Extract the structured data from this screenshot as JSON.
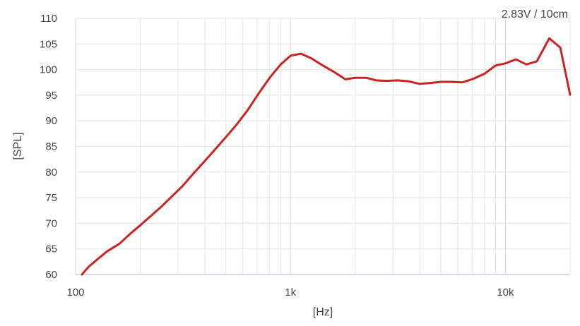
{
  "chart_data": {
    "type": "line",
    "title": "",
    "annotation": "2.83V / 10cm",
    "xlabel": "[Hz]",
    "ylabel": "[SPL]",
    "xscale": "log",
    "xlim": [
      100,
      20000
    ],
    "ylim": [
      60,
      110
    ],
    "x_ticks": [
      100,
      1000,
      10000
    ],
    "x_tick_labels": [
      "100",
      "1k",
      "10k"
    ],
    "y_ticks": [
      60,
      65,
      70,
      75,
      80,
      85,
      90,
      95,
      100,
      105,
      110
    ],
    "y_tick_labels": [
      "60",
      "65",
      "70",
      "75",
      "80",
      "85",
      "90",
      "95",
      "100",
      "105",
      "110"
    ],
    "grid": true,
    "colors": {
      "line": "#cc2222",
      "grid": "#e3e3e3",
      "baseline": "#c8cdf0",
      "text": "#444444"
    },
    "series": [
      {
        "x": [
          107,
          115,
          125,
          140,
          160,
          180,
          200,
          225,
          250,
          280,
          315,
          355,
          400,
          450,
          500,
          560,
          630,
          710,
          800,
          900,
          1000,
          1120,
          1250,
          1400,
          1600,
          1800,
          2000,
          2250,
          2500,
          2800,
          3150,
          3550,
          4000,
          4500,
          5000,
          5600,
          6300,
          7100,
          8000,
          9000,
          10000,
          11200,
          12500,
          14000,
          16000,
          18000,
          20000
        ],
        "values": [
          60,
          61.5,
          62.8,
          64.5,
          66,
          68,
          69.6,
          71.5,
          73.2,
          75.2,
          77.3,
          79.8,
          82.2,
          84.6,
          86.8,
          89.2,
          92,
          95.3,
          98.4,
          101,
          102.7,
          103.1,
          102.2,
          100.9,
          99.5,
          98.1,
          98.4,
          98.4,
          97.9,
          97.8,
          97.9,
          97.7,
          97.2,
          97.4,
          97.6,
          97.6,
          97.5,
          98.2,
          99.2,
          100.8,
          101.2,
          102,
          101,
          101.6,
          106.1,
          104.3,
          95.1
        ]
      }
    ]
  }
}
